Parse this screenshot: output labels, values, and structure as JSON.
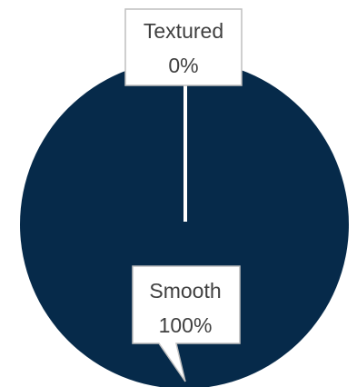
{
  "chart_data": {
    "type": "pie",
    "title": "",
    "categories": [
      "Textured",
      "Smooth"
    ],
    "values": [
      0,
      100
    ],
    "data_labels": [
      {
        "category": "Textured",
        "percent_label": "0%"
      },
      {
        "category": "Smooth",
        "percent_label": "100%"
      }
    ],
    "colors": {
      "Smooth": "#062a4a",
      "Textured": "#ffffff"
    },
    "legend": "none"
  }
}
